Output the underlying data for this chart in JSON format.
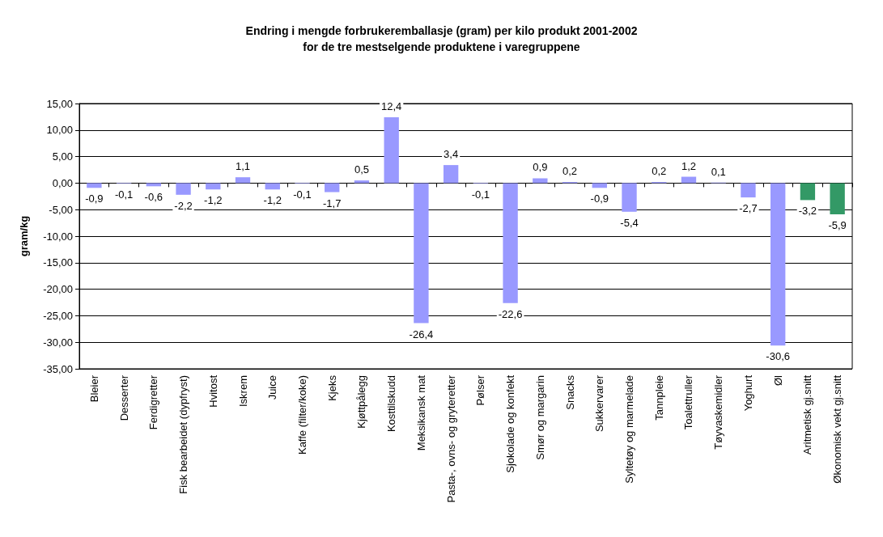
{
  "chart_data": {
    "type": "bar",
    "title": "Endring i mengde forbrukeremballasje (gram) per kilo produkt 2001-2002",
    "subtitle": "for de tre mestselgende produktene i varegruppene",
    "ylabel": "gram/kg",
    "categories": [
      "Bleier",
      "Desserter",
      "Ferdigretter",
      "Fisk bearbeidet (dypfryst)",
      "Hvitost",
      "Iskrem",
      "Juice",
      "Kaffe (filter/koke)",
      "Kjeks",
      "Kjøttpålegg",
      "Kosttilskudd",
      "Meksikansk mat",
      "Pasta-, ovns- og gryteretter",
      "Pølser",
      "Sjokolade og konfekt",
      "Smør og margarin",
      "Snacks",
      "Sukkervarer",
      "Syltetøy og marmelade",
      "Tannpleie",
      "Toalettruller",
      "Tøyvaskemidler",
      "Yoghurt",
      "Øl",
      "Aritmetisk gj.snitt",
      "Økonomisk vekt gj.snitt"
    ],
    "values": [
      -0.9,
      -0.1,
      -0.6,
      -2.2,
      -1.2,
      1.1,
      -1.2,
      -0.1,
      -1.7,
      0.5,
      12.4,
      -26.4,
      3.4,
      -0.1,
      -22.6,
      0.9,
      0.2,
      -0.9,
      -5.4,
      0.2,
      1.2,
      0.1,
      -2.7,
      -30.6,
      -3.2,
      -5.9
    ],
    "colors": [
      "#9999ff",
      "#9999ff",
      "#9999ff",
      "#9999ff",
      "#9999ff",
      "#9999ff",
      "#9999ff",
      "#9999ff",
      "#9999ff",
      "#9999ff",
      "#9999ff",
      "#9999ff",
      "#9999ff",
      "#9999ff",
      "#9999ff",
      "#9999ff",
      "#9999ff",
      "#9999ff",
      "#9999ff",
      "#9999ff",
      "#9999ff",
      "#9999ff",
      "#9999ff",
      "#9999ff",
      "#339966",
      "#339966"
    ],
    "ylim": [
      -35,
      15
    ],
    "yticks": [
      {
        "value": -35,
        "label": "-35,00"
      },
      {
        "value": -30,
        "label": "-30,00"
      },
      {
        "value": -25,
        "label": "-25,00"
      },
      {
        "value": -20,
        "label": "-20,00"
      },
      {
        "value": -15,
        "label": "-15,00"
      },
      {
        "value": -10,
        "label": "-10,00"
      },
      {
        "value": -5,
        "label": "-5,00"
      },
      {
        "value": 0,
        "label": "0,00"
      },
      {
        "value": 5,
        "label": "5,00"
      },
      {
        "value": 10,
        "label": "10,00"
      },
      {
        "value": 15,
        "label": "15,00"
      }
    ],
    "value_labels": [
      "-0,9",
      "-0,1",
      "-0,6",
      "-2,2",
      "-1,2",
      "1,1",
      "-1,2",
      "-0,1",
      "-1,7",
      "0,5",
      "12,4",
      "-26,4",
      "3,4",
      "-0,1",
      "-22,6",
      "0,9",
      "0,2",
      "-0,9",
      "-5,4",
      "0,2",
      "1,2",
      "0,1",
      "-2,7",
      "-30,6",
      "-3,2",
      "-5,9"
    ],
    "grid": "y"
  }
}
